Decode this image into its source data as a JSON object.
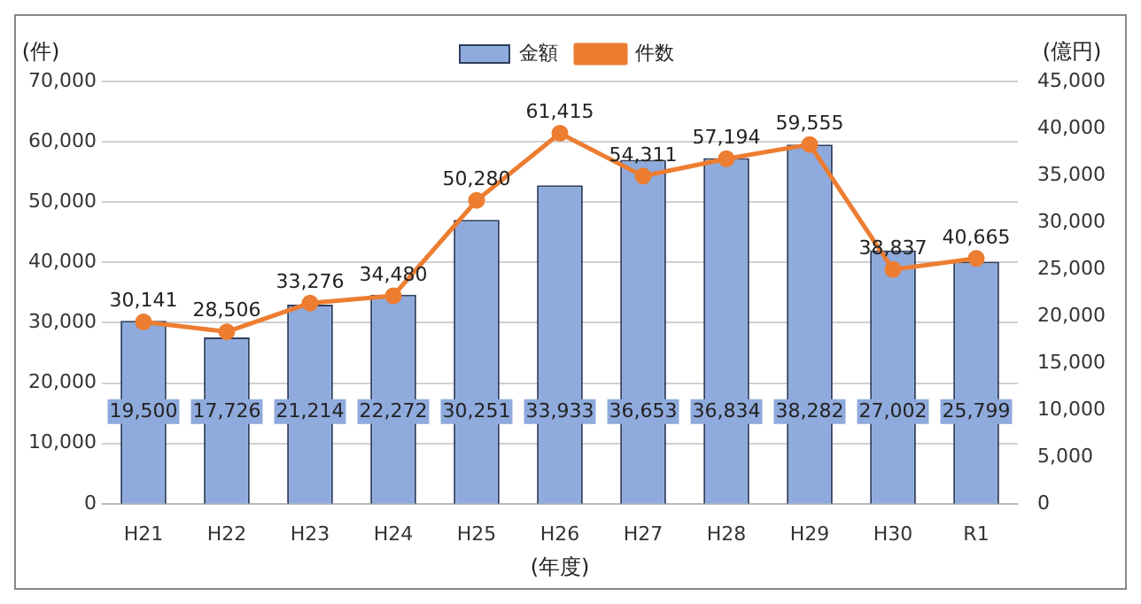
{
  "chart_data": {
    "type": "bar",
    "xlabel": "(年度)",
    "ylabel": "(件)",
    "y2label": "(億円)",
    "categories": [
      "H21",
      "H22",
      "H23",
      "H24",
      "H25",
      "H26",
      "H27",
      "H28",
      "H29",
      "H30",
      "R1"
    ],
    "series": [
      {
        "name": "金額",
        "axis": "y2",
        "color": "#8faadc",
        "values": [
          19500,
          17726,
          21214,
          22272,
          30251,
          33933,
          36653,
          36834,
          38282,
          27002,
          25799
        ],
        "value_labels": [
          "19,500",
          "17,726",
          "21,214",
          "22,272",
          "30,251",
          "33,933",
          "36,653",
          "36,834",
          "38,282",
          "27,002",
          "25,799"
        ]
      },
      {
        "name": "件数",
        "type": "line",
        "axis": "y",
        "color": "#ed7d31",
        "marker": "circle",
        "values": [
          30141,
          28506,
          33276,
          34480,
          50280,
          61415,
          54311,
          57194,
          59555,
          38837,
          40665
        ],
        "value_labels": [
          "30,141",
          "28,506",
          "33,276",
          "34,480",
          "50,280",
          "61,415",
          "54,311",
          "57,194",
          "59,555",
          "38,837",
          "40,665"
        ]
      }
    ],
    "ylim": [
      0,
      70000
    ],
    "yticks": [
      0,
      {
        "value": 10000,
        "label": "10,000"
      },
      {
        "value": 20000,
        "label": "20,000"
      },
      {
        "value": 30000,
        "label": "30,000"
      },
      {
        "value": 40000,
        "label": "40,000"
      },
      {
        "value": 50000,
        "label": "50,000"
      },
      {
        "value": 60000,
        "label": "60,000"
      },
      {
        "value": 70000,
        "label": "70,000"
      }
    ],
    "y2lim": [
      0,
      45000
    ],
    "y2ticks": [
      0,
      {
        "value": 5000,
        "label": "5,000"
      },
      {
        "value": 10000,
        "label": "10,000"
      },
      {
        "value": 15000,
        "label": "15,000"
      },
      {
        "value": 20000,
        "label": "20,000"
      },
      {
        "value": 25000,
        "label": "25,000"
      },
      {
        "value": 30000,
        "label": "30,000"
      },
      {
        "value": 35000,
        "label": "35,000"
      },
      {
        "value": 40000,
        "label": "40,000"
      },
      {
        "value": 45000,
        "label": "45,000"
      }
    ],
    "grid": "y",
    "legend": "top"
  }
}
